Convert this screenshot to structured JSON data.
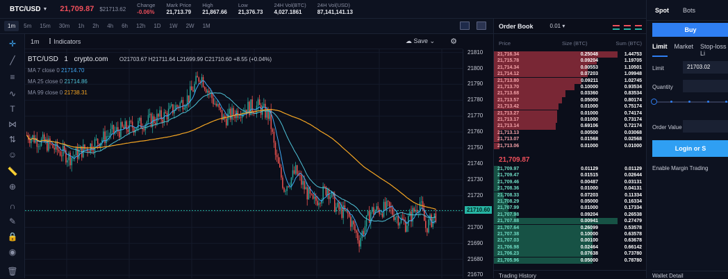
{
  "ticker": {
    "symbol": "BTC/USD",
    "last_price": "21,709.87",
    "last_price_usd": "$21713.62",
    "stats": [
      {
        "label": "Change",
        "value": "-0.06%",
        "color": "#ef4f5b"
      },
      {
        "label": "Mark Price",
        "value": "21,713.79"
      },
      {
        "label": "High",
        "value": "21,867.66"
      },
      {
        "label": "Low",
        "value": "21,376.73"
      },
      {
        "label": "24H Vol(BTC)",
        "value": "4,027.1861"
      },
      {
        "label": "24H Vol(USD)",
        "value": "87,141,141.13"
      }
    ]
  },
  "timeframes": [
    "1m",
    "5m",
    "15m",
    "30m",
    "1h",
    "2h",
    "4h",
    "6h",
    "12h",
    "1D",
    "1W",
    "2W",
    "1M"
  ],
  "active_timeframe": "1m",
  "chart_header": {
    "interval": "1m",
    "indicators_label": "Indicators",
    "save_label": "Save"
  },
  "legend": {
    "title": "BTC/USD",
    "interval": "1",
    "exchange": "crypto.com",
    "ohlc": "O21703.67 H21711.64 L21699.99 C21710.60 +8.55 (+0.04%)",
    "mas": [
      {
        "label": "MA 7 close 0",
        "value": "21714.70",
        "color": "#3fa9f5"
      },
      {
        "label": "MA 25 close 0",
        "value": "21714.86",
        "color": "#4fc3d8"
      },
      {
        "label": "MA 99 close 0",
        "value": "21738.31",
        "color": "#f5a623"
      }
    ]
  },
  "chart_data": {
    "type": "candlestick",
    "y_ticks": [
      21810,
      21800,
      21790,
      21780,
      21770,
      21760,
      21750,
      21740,
      21730,
      21720,
      21710,
      21700,
      21690,
      21680,
      21670
    ],
    "ylim": [
      21668,
      21812
    ],
    "last_price_label": "21710.60",
    "last_price": 21710.6,
    "up_color": "#26a69a",
    "down_color": "#ef5350",
    "ma_colors": {
      "ma7": "#3fa9f5",
      "ma25": "#4fc3d8",
      "ma99": "#f5a623"
    }
  },
  "orderbook": {
    "title": "Order Book",
    "step": "0.01",
    "columns": [
      "Price",
      "Size (BTC)",
      "Sum (BTC)"
    ],
    "asks": [
      {
        "p": "21,716.34",
        "s": "0.25048",
        "c": "1.44753",
        "d": 1.0
      },
      {
        "p": "21,715.78",
        "s": "0.09204",
        "c": "1.19705",
        "d": 0.83
      },
      {
        "p": "21,714.34",
        "s": "0.00553",
        "c": "1.10501",
        "d": 0.76
      },
      {
        "p": "21,714.12",
        "s": "0.07203",
        "c": "1.09948",
        "d": 0.76
      },
      {
        "p": "21,713.80",
        "s": "0.09211",
        "c": "1.02745",
        "d": 0.71
      },
      {
        "p": "21,713.70",
        "s": "0.10000",
        "c": "0.93534",
        "d": 0.65
      },
      {
        "p": "21,713.68",
        "s": "0.03360",
        "c": "0.83534",
        "d": 0.58
      },
      {
        "p": "21,713.57",
        "s": "0.05000",
        "c": "0.80174",
        "d": 0.55
      },
      {
        "p": "21,713.42",
        "s": "0.01000",
        "c": "0.75174",
        "d": 0.52
      },
      {
        "p": "21,713.27",
        "s": "0.01000",
        "c": "0.74174",
        "d": 0.51
      },
      {
        "p": "21,713.17",
        "s": "0.01000",
        "c": "0.73174",
        "d": 0.51
      },
      {
        "p": "21,713.14",
        "s": "0.69106",
        "c": "0.72174",
        "d": 0.5
      },
      {
        "p": "21,713.13",
        "s": "0.00500",
        "c": "0.03068",
        "d": 0.03
      },
      {
        "p": "21,713.07",
        "s": "0.01568",
        "c": "0.02568",
        "d": 0.02
      },
      {
        "p": "21,713.06",
        "s": "0.01000",
        "c": "0.01000",
        "d": 0.01
      }
    ],
    "mid_price": "21,709.87",
    "bids": [
      {
        "p": "21,709.97",
        "s": "0.01129",
        "c": "0.01129",
        "d": 0.01
      },
      {
        "p": "21,709.47",
        "s": "0.01515",
        "c": "0.02644",
        "d": 0.02
      },
      {
        "p": "21,709.46",
        "s": "0.00487",
        "c": "0.03131",
        "d": 0.02
      },
      {
        "p": "21,708.36",
        "s": "0.01000",
        "c": "0.04131",
        "d": 0.03
      },
      {
        "p": "21,708.33",
        "s": "0.07203",
        "c": "0.11334",
        "d": 0.08
      },
      {
        "p": "21,708.29",
        "s": "0.05000",
        "c": "0.16334",
        "d": 0.11
      },
      {
        "p": "21,707.99",
        "s": "0.01000",
        "c": "0.17334",
        "d": 0.12
      },
      {
        "p": "21,707.98",
        "s": "0.09204",
        "c": "0.26538",
        "d": 0.18
      },
      {
        "p": "21,707.88",
        "s": "0.00941",
        "c": "0.27479",
        "d": 1.0
      },
      {
        "p": "21,707.64",
        "s": "0.26099",
        "c": "0.53578",
        "d": 0.8
      },
      {
        "p": "21,707.38",
        "s": "0.10000",
        "c": "0.63578",
        "d": 0.8
      },
      {
        "p": "21,707.03",
        "s": "0.00100",
        "c": "0.63678",
        "d": 0.8
      },
      {
        "p": "21,706.98",
        "s": "0.02464",
        "c": "0.66142",
        "d": 0.8
      },
      {
        "p": "21,706.23",
        "s": "0.07638",
        "c": "0.73780",
        "d": 0.8
      },
      {
        "p": "21,705.96",
        "s": "0.05000",
        "c": "0.78780",
        "d": 0.8
      }
    ],
    "footer": "Trading History"
  },
  "trade_panel": {
    "tabs": [
      "Spot",
      "Bots"
    ],
    "active_tab": "Spot",
    "buy_label": "Buy",
    "order_types": [
      "Limit",
      "Market",
      "Stop-loss Li"
    ],
    "limit_label": "Limit",
    "limit_value": "21703.02",
    "quantity_label": "Quantity",
    "order_value_label": "Order Value",
    "login_label": "Login or S",
    "margin_label": "Enable Margin Trading",
    "footer": "Wallet Detail"
  }
}
